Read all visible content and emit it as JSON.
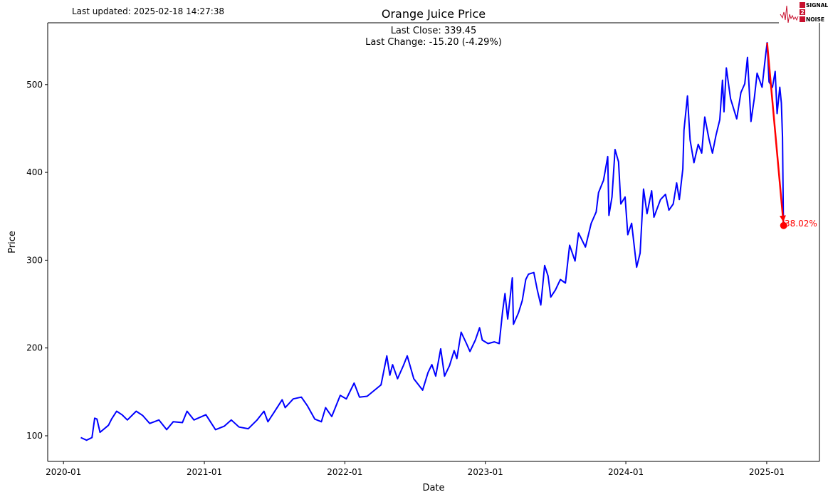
{
  "header": {
    "last_updated": "Last updated: 2025-02-18 14:27:38"
  },
  "logo": {
    "line1": "SIGNAL",
    "line2": "2",
    "line3": "NOISE",
    "accent": "#c8102e"
  },
  "chart_data": {
    "type": "line",
    "title": "Orange Juice  Price",
    "subtitle_lines": [
      "Last Close: 339.45",
      "Last Change: -15.20 (-4.29%)"
    ],
    "xlabel": "Date",
    "ylabel": "Price",
    "xlim": [
      "2019-11-21",
      "2025-05-18"
    ],
    "ylim": [
      70.8,
      570.4
    ],
    "x_ticks": [
      "2020-01",
      "2021-01",
      "2022-01",
      "2023-01",
      "2024-01",
      "2025-01"
    ],
    "y_ticks": [
      100,
      200,
      300,
      400,
      500
    ],
    "grid": false,
    "series": [
      {
        "color": "#0000ff",
        "points": [
          [
            "2020-02-15",
            98
          ],
          [
            "2020-03-01",
            95
          ],
          [
            "2020-03-15",
            98
          ],
          [
            "2020-03-22",
            120
          ],
          [
            "2020-03-28",
            119
          ],
          [
            "2020-04-05",
            104
          ],
          [
            "2020-04-27",
            112
          ],
          [
            "2020-05-05",
            119
          ],
          [
            "2020-05-18",
            128
          ],
          [
            "2020-06-01",
            124
          ],
          [
            "2020-06-15",
            118
          ],
          [
            "2020-07-08",
            128
          ],
          [
            "2020-07-25",
            123
          ],
          [
            "2020-08-12",
            114
          ],
          [
            "2020-09-05",
            118
          ],
          [
            "2020-09-25",
            107
          ],
          [
            "2020-10-12",
            116
          ],
          [
            "2020-11-05",
            115
          ],
          [
            "2020-11-17",
            128
          ],
          [
            "2020-12-05",
            118
          ],
          [
            "2021-01-05",
            124
          ],
          [
            "2021-01-30",
            107
          ],
          [
            "2021-02-22",
            111
          ],
          [
            "2021-03-12",
            118
          ],
          [
            "2021-04-01",
            110
          ],
          [
            "2021-04-25",
            108
          ],
          [
            "2021-05-18",
            118
          ],
          [
            "2021-06-05",
            128
          ],
          [
            "2021-06-15",
            116
          ],
          [
            "2021-06-30",
            126
          ],
          [
            "2021-07-22",
            141
          ],
          [
            "2021-07-30",
            132
          ],
          [
            "2021-08-20",
            142
          ],
          [
            "2021-09-10",
            144
          ],
          [
            "2021-09-26",
            134
          ],
          [
            "2021-10-15",
            119
          ],
          [
            "2021-11-01",
            116
          ],
          [
            "2021-11-12",
            132
          ],
          [
            "2021-11-28",
            122
          ],
          [
            "2021-12-20",
            146
          ],
          [
            "2022-01-05",
            142
          ],
          [
            "2022-01-25",
            160
          ],
          [
            "2022-02-08",
            144
          ],
          [
            "2022-02-28",
            145
          ],
          [
            "2022-04-05",
            158
          ],
          [
            "2022-04-20",
            191
          ],
          [
            "2022-04-28",
            169
          ],
          [
            "2022-05-05",
            181
          ],
          [
            "2022-05-18",
            165
          ],
          [
            "2022-06-02",
            180
          ],
          [
            "2022-06-12",
            191
          ],
          [
            "2022-06-29",
            165
          ],
          [
            "2022-07-22",
            152
          ],
          [
            "2022-08-05",
            172
          ],
          [
            "2022-08-15",
            181
          ],
          [
            "2022-08-25",
            168
          ],
          [
            "2022-09-07",
            199
          ],
          [
            "2022-09-17",
            168
          ],
          [
            "2022-09-30",
            180
          ],
          [
            "2022-10-12",
            197
          ],
          [
            "2022-10-19",
            188
          ],
          [
            "2022-10-30",
            218
          ],
          [
            "2022-11-13",
            205
          ],
          [
            "2022-11-22",
            196
          ],
          [
            "2022-12-06",
            209
          ],
          [
            "2022-12-17",
            223
          ],
          [
            "2022-12-24",
            209
          ],
          [
            "2023-01-08",
            205
          ],
          [
            "2023-01-24",
            207
          ],
          [
            "2023-02-06",
            205
          ],
          [
            "2023-02-15",
            242
          ],
          [
            "2023-02-21",
            262
          ],
          [
            "2023-02-28",
            233
          ],
          [
            "2023-03-12",
            280
          ],
          [
            "2023-03-15",
            227
          ],
          [
            "2023-03-28",
            240
          ],
          [
            "2023-04-07",
            254
          ],
          [
            "2023-04-16",
            278
          ],
          [
            "2023-04-23",
            284
          ],
          [
            "2023-05-07",
            286
          ],
          [
            "2023-05-16",
            266
          ],
          [
            "2023-05-25",
            249
          ],
          [
            "2023-06-04",
            294
          ],
          [
            "2023-06-13",
            282
          ],
          [
            "2023-06-20",
            258
          ],
          [
            "2023-07-02",
            266
          ],
          [
            "2023-07-15",
            278
          ],
          [
            "2023-07-28",
            274
          ],
          [
            "2023-08-04",
            302
          ],
          [
            "2023-08-08",
            317
          ],
          [
            "2023-08-22",
            299
          ],
          [
            "2023-08-31",
            331
          ],
          [
            "2023-09-18",
            315
          ],
          [
            "2023-10-03",
            342
          ],
          [
            "2023-10-16",
            355
          ],
          [
            "2023-10-22",
            377
          ],
          [
            "2023-11-04",
            391
          ],
          [
            "2023-11-15",
            418
          ],
          [
            "2023-11-18",
            351
          ],
          [
            "2023-11-26",
            372
          ],
          [
            "2023-12-04",
            426
          ],
          [
            "2023-12-13",
            412
          ],
          [
            "2023-12-19",
            364
          ],
          [
            "2023-12-30",
            372
          ],
          [
            "2024-01-06",
            329
          ],
          [
            "2024-01-16",
            342
          ],
          [
            "2024-01-29",
            292
          ],
          [
            "2024-02-07",
            308
          ],
          [
            "2024-02-16",
            381
          ],
          [
            "2024-02-25",
            353
          ],
          [
            "2024-03-08",
            379
          ],
          [
            "2024-03-14",
            349
          ],
          [
            "2024-03-31",
            369
          ],
          [
            "2024-04-13",
            375
          ],
          [
            "2024-04-22",
            357
          ],
          [
            "2024-05-03",
            364
          ],
          [
            "2024-05-12",
            388
          ],
          [
            "2024-05-19",
            369
          ],
          [
            "2024-05-28",
            404
          ],
          [
            "2024-05-31",
            448
          ],
          [
            "2024-06-09",
            487
          ],
          [
            "2024-06-16",
            437
          ],
          [
            "2024-06-26",
            411
          ],
          [
            "2024-07-07",
            432
          ],
          [
            "2024-07-16",
            422
          ],
          [
            "2024-07-24",
            463
          ],
          [
            "2024-08-04",
            438
          ],
          [
            "2024-08-13",
            422
          ],
          [
            "2024-08-22",
            442
          ],
          [
            "2024-09-01",
            460
          ],
          [
            "2024-09-08",
            505
          ],
          [
            "2024-09-12",
            469
          ],
          [
            "2024-09-18",
            519
          ],
          [
            "2024-09-29",
            484
          ],
          [
            "2024-10-15",
            461
          ],
          [
            "2024-10-26",
            491
          ],
          [
            "2024-11-05",
            501
          ],
          [
            "2024-11-12",
            531
          ],
          [
            "2024-11-15",
            507
          ],
          [
            "2024-11-21",
            458
          ],
          [
            "2024-11-30",
            485
          ],
          [
            "2024-12-07",
            513
          ],
          [
            "2024-12-20",
            497
          ],
          [
            "2024-12-29",
            533
          ],
          [
            "2025-01-02",
            547.7
          ],
          [
            "2025-01-07",
            503
          ],
          [
            "2025-01-16",
            497
          ],
          [
            "2025-01-23",
            515
          ],
          [
            "2025-01-28",
            467
          ],
          [
            "2025-02-04",
            497
          ],
          [
            "2025-02-08",
            479
          ],
          [
            "2025-02-11",
            440
          ],
          [
            "2025-02-13",
            354.65
          ],
          [
            "2025-02-14",
            339.45
          ]
        ]
      }
    ],
    "annotation": {
      "from": [
        "2025-01-02",
        547.7
      ],
      "to": [
        "2025-02-14",
        339.45
      ],
      "label": "-38.02%",
      "color": "#ff0000"
    }
  }
}
